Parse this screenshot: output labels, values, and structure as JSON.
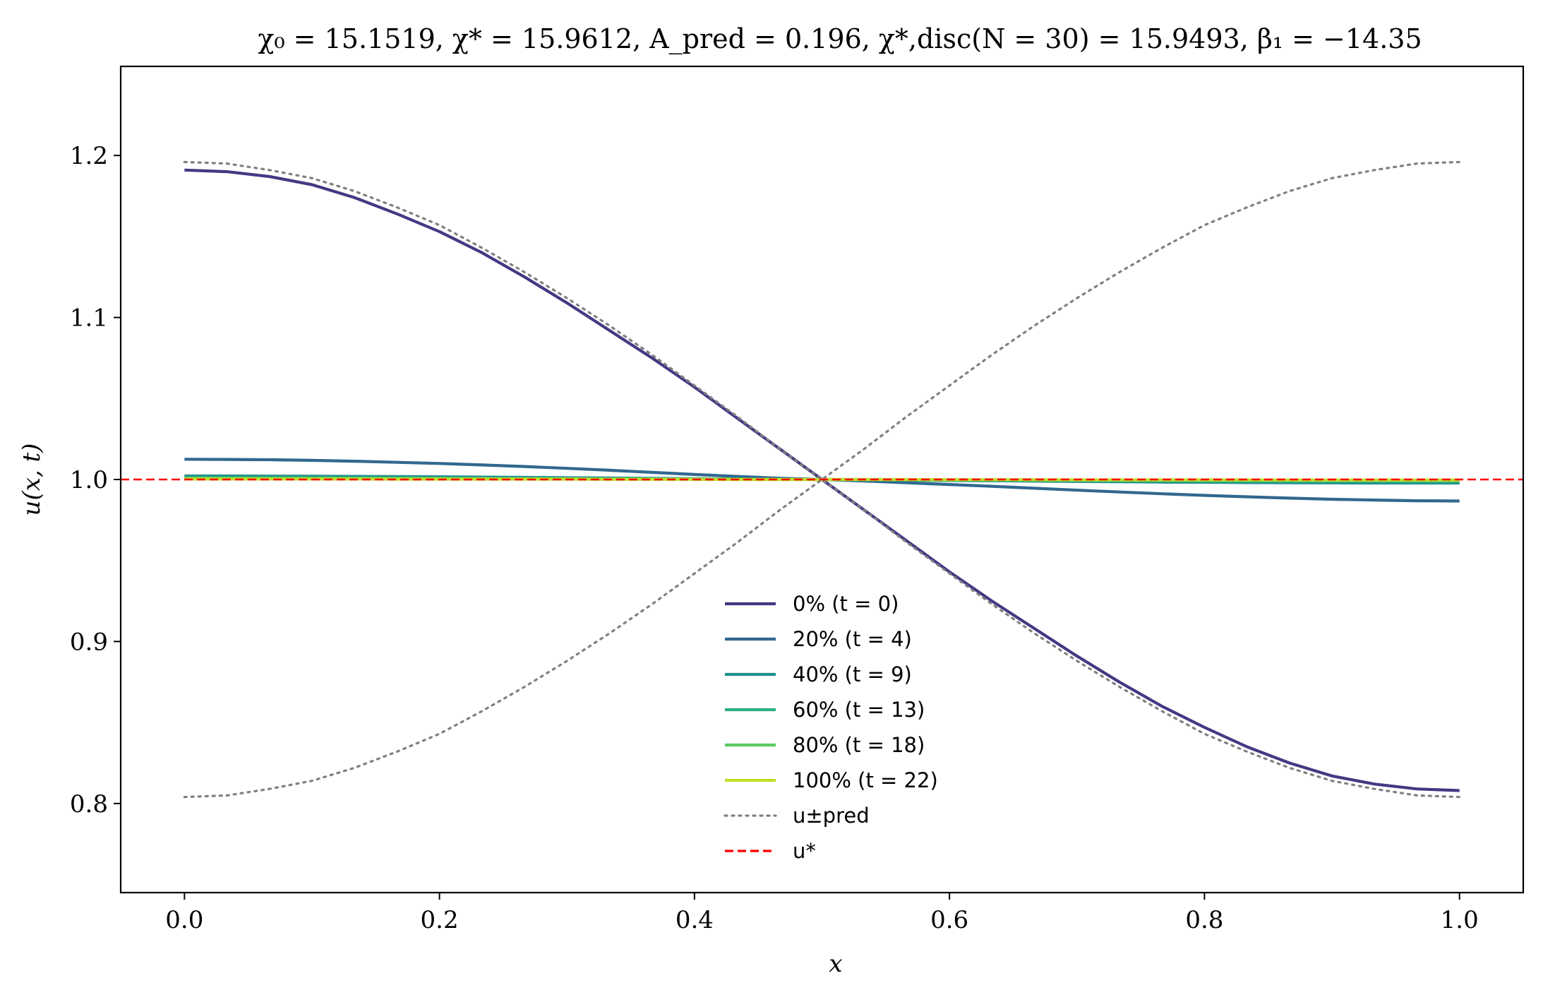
{
  "chart_data": {
    "type": "line",
    "title": "χ₀ = 15.1519,  χ* = 15.9612,  A_pred = 0.196,  χ*,disc(N = 30) = 15.9493,  β₁ = −14.35",
    "xlabel": "x",
    "ylabel": "u(x, t)",
    "xlim": [
      -0.05,
      1.05
    ],
    "ylim": [
      0.745,
      1.255
    ],
    "xticks": [
      0.0,
      0.2,
      0.4,
      0.6,
      0.8,
      1.0
    ],
    "xtick_labels": [
      "0.0",
      "0.2",
      "0.4",
      "0.6",
      "0.8",
      "1.0"
    ],
    "yticks": [
      0.8,
      0.9,
      1.0,
      1.1,
      1.2
    ],
    "ytick_labels": [
      "0.8",
      "0.9",
      "1.0",
      "1.1",
      "1.2"
    ],
    "grid": false,
    "legend_position": "lower-center",
    "x": [
      0.0,
      0.0333,
      0.0667,
      0.1,
      0.1333,
      0.1667,
      0.2,
      0.2333,
      0.2667,
      0.3,
      0.3333,
      0.3667,
      0.4,
      0.4333,
      0.4667,
      0.5,
      0.5333,
      0.5667,
      0.6,
      0.6333,
      0.6667,
      0.7,
      0.7333,
      0.7667,
      0.8,
      0.8333,
      0.8667,
      0.9,
      0.9333,
      0.9667,
      1.0
    ],
    "series": [
      {
        "name": "0% (t = 0)",
        "color": "#443983",
        "style": "solid",
        "values": [
          1.191,
          1.19,
          1.187,
          1.182,
          1.174,
          1.164,
          1.153,
          1.14,
          1.125,
          1.109,
          1.092,
          1.075,
          1.057,
          1.038,
          1.019,
          1.0,
          0.981,
          0.962,
          0.943,
          0.925,
          0.908,
          0.891,
          0.875,
          0.86,
          0.847,
          0.835,
          0.825,
          0.817,
          0.812,
          0.809,
          0.808
        ]
      },
      {
        "name": "20% (t = 4)",
        "color": "#31688e",
        "style": "solid",
        "values": [
          1.0125,
          1.0124,
          1.0122,
          1.0118,
          1.0113,
          1.0106,
          1.0099,
          1.009,
          1.008,
          1.0069,
          1.0057,
          1.0044,
          1.0031,
          1.0019,
          1.0008,
          1.0,
          0.9991,
          0.998,
          0.9969,
          0.9958,
          0.9946,
          0.9934,
          0.9923,
          0.9912,
          0.9902,
          0.9893,
          0.9885,
          0.9878,
          0.9873,
          0.9869,
          0.9867
        ]
      },
      {
        "name": "40% (t = 9)",
        "color": "#21918c",
        "style": "solid",
        "values": [
          1.0022,
          1.0022,
          1.0021,
          1.002,
          1.0019,
          1.0018,
          1.0017,
          1.0015,
          1.0013,
          1.0011,
          1.0009,
          1.0007,
          1.0005,
          1.0003,
          1.0001,
          1.0,
          0.9998,
          0.9996,
          0.9994,
          0.9992,
          0.999,
          0.9988,
          0.9986,
          0.9984,
          0.9983,
          0.9981,
          0.998,
          0.9979,
          0.9978,
          0.9978,
          0.9978
        ]
      },
      {
        "name": "60% (t = 13)",
        "color": "#2ab07f",
        "style": "solid",
        "values": [
          1.0012,
          1.0012,
          1.0012,
          1.0011,
          1.0011,
          1.001,
          1.0009,
          1.0008,
          1.0007,
          1.0006,
          1.0005,
          1.0004,
          1.0003,
          1.0002,
          1.0001,
          1.0,
          0.9999,
          0.9998,
          0.9997,
          0.9996,
          0.9995,
          0.9994,
          0.9993,
          0.9992,
          0.9991,
          0.999,
          0.999,
          0.9989,
          0.9989,
          0.9988,
          0.9988
        ]
      },
      {
        "name": "80% (t = 18)",
        "color": "#5ec962",
        "style": "solid",
        "values": [
          1.0006,
          1.0006,
          1.0006,
          1.0006,
          1.0005,
          1.0005,
          1.0005,
          1.0004,
          1.0004,
          1.0003,
          1.0003,
          1.0002,
          1.0002,
          1.0001,
          1.0,
          1.0,
          1.0,
          0.9999,
          0.9998,
          0.9998,
          0.9997,
          0.9997,
          0.9996,
          0.9996,
          0.9995,
          0.9995,
          0.9995,
          0.9994,
          0.9994,
          0.9994,
          0.9994
        ]
      },
      {
        "name": "100% (t = 22)",
        "color": "#bddf26",
        "style": "solid",
        "values": [
          1.0003,
          1.0003,
          1.0003,
          1.0003,
          1.0003,
          1.0002,
          1.0002,
          1.0002,
          1.0002,
          1.0002,
          1.0001,
          1.0001,
          1.0001,
          1.0,
          1.0,
          1.0,
          1.0,
          1.0,
          0.9999,
          0.9999,
          0.9999,
          0.9998,
          0.9998,
          0.9998,
          0.9998,
          0.9998,
          0.9997,
          0.9997,
          0.9997,
          0.9997,
          0.9997
        ]
      },
      {
        "name": "u±pred (+)",
        "color": "#808080",
        "style": "dotted",
        "values": [
          1.196,
          1.195,
          1.191,
          1.186,
          1.178,
          1.168,
          1.157,
          1.143,
          1.128,
          1.112,
          1.095,
          1.077,
          1.058,
          1.039,
          1.019,
          1.0,
          0.981,
          0.961,
          0.942,
          0.923,
          0.905,
          0.888,
          0.872,
          0.857,
          0.843,
          0.832,
          0.822,
          0.814,
          0.809,
          0.805,
          0.804
        ]
      },
      {
        "name": "u±pred (−)",
        "color": "#808080",
        "style": "dotted",
        "values": [
          0.804,
          0.805,
          0.809,
          0.814,
          0.822,
          0.832,
          0.843,
          0.857,
          0.872,
          0.888,
          0.905,
          0.923,
          0.942,
          0.961,
          0.981,
          1.0,
          1.019,
          1.039,
          1.058,
          1.077,
          1.095,
          1.112,
          1.128,
          1.143,
          1.157,
          1.168,
          1.178,
          1.186,
          1.191,
          1.195,
          1.196
        ]
      }
    ],
    "reference_line": {
      "name": "u*",
      "y": 1.0,
      "color": "#ff0000",
      "style": "dashed"
    },
    "legend": [
      {
        "label": "0% (t = 0)",
        "color": "#443983",
        "style": "solid"
      },
      {
        "label": "20% (t = 4)",
        "color": "#31688e",
        "style": "solid"
      },
      {
        "label": "40% (t = 9)",
        "color": "#21918c",
        "style": "solid"
      },
      {
        "label": "60% (t = 13)",
        "color": "#2ab07f",
        "style": "solid"
      },
      {
        "label": "80% (t = 18)",
        "color": "#5ec962",
        "style": "solid"
      },
      {
        "label": "100% (t = 22)",
        "color": "#bddf26",
        "style": "solid"
      },
      {
        "label": "u±pred",
        "color": "#808080",
        "style": "dotted"
      },
      {
        "label": "u*",
        "color": "#ff0000",
        "style": "dashed"
      }
    ]
  }
}
